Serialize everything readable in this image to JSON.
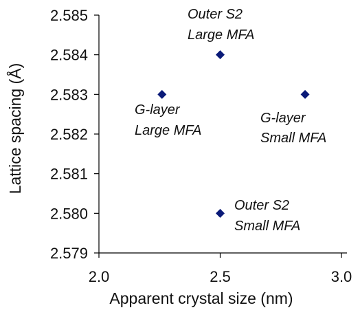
{
  "chart_data": {
    "type": "scatter",
    "title": "",
    "xlabel": "Apparent crystal size (nm)",
    "ylabel": "Lattice spacing (Å)",
    "xlim": [
      2.0,
      3.0
    ],
    "ylim": [
      2.579,
      2.585
    ],
    "xticks": [
      "2.0",
      "2.5",
      "3.0"
    ],
    "yticks": [
      "2.579",
      "2.580",
      "2.581",
      "2.582",
      "2.583",
      "2.584",
      "2.585"
    ],
    "grid": false,
    "legend": "none",
    "marker": "diamond",
    "marker_color": "#0a1a78",
    "series": [
      {
        "x": [
          2.26,
          2.5,
          2.85,
          2.5
        ],
        "y": [
          2.583,
          2.584,
          2.583,
          2.58
        ]
      }
    ],
    "annotations": [
      {
        "lines": [
          "Outer S2",
          "Large MFA"
        ]
      },
      {
        "lines": [
          "G-layer",
          "Large MFA"
        ]
      },
      {
        "lines": [
          "G-layer",
          "Small MFA"
        ]
      },
      {
        "lines": [
          "Outer S2",
          "Small MFA"
        ]
      }
    ]
  }
}
